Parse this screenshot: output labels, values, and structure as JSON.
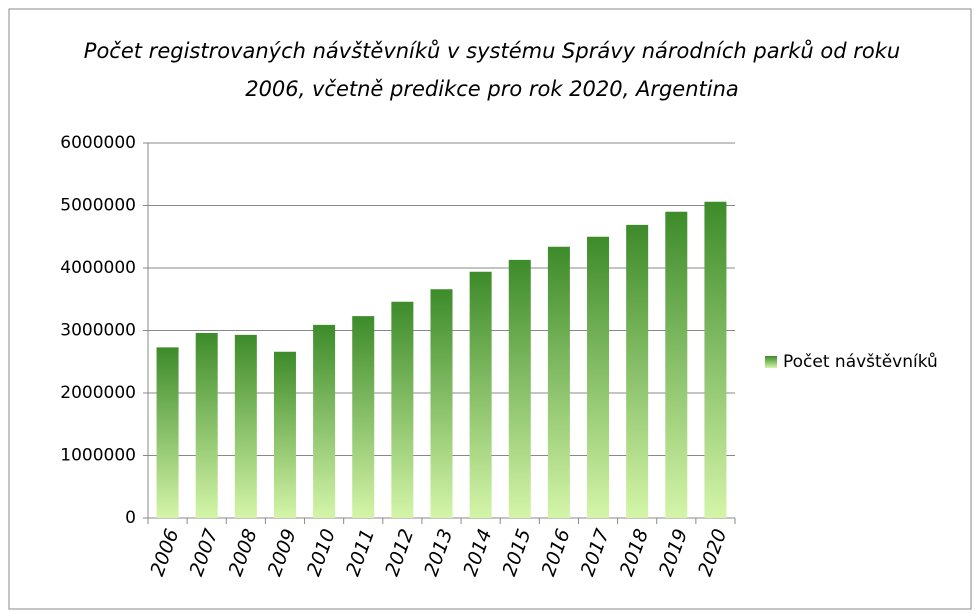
{
  "chart_data": {
    "type": "bar",
    "title": "Počet registrovaných návštěvníků v systému Správy národních parků od roku 2006, včetně predikce pro rok 2020, Argentina",
    "categories": [
      "2006",
      "2007",
      "2008",
      "2009",
      "2010",
      "2011",
      "2012",
      "2013",
      "2014",
      "2015",
      "2016",
      "2017",
      "2018",
      "2019",
      "2020"
    ],
    "series": [
      {
        "name": "Počet návštěvníků",
        "color": "#3d8b2a",
        "values": [
          2730000,
          2960000,
          2930000,
          2660000,
          3090000,
          3230000,
          3460000,
          3660000,
          3940000,
          4130000,
          4340000,
          4500000,
          4690000,
          4900000,
          5060000
        ]
      }
    ],
    "ylim": [
      0,
      6000000
    ],
    "yticks": [
      0,
      1000000,
      2000000,
      3000000,
      4000000,
      5000000,
      6000000
    ],
    "grid": true,
    "legend": "right"
  }
}
